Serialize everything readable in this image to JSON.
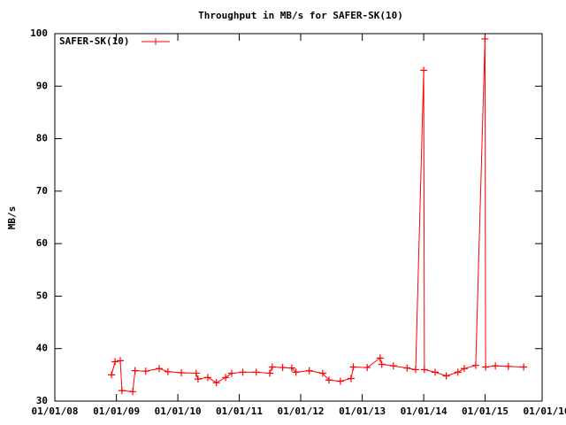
{
  "chart_data": {
    "type": "line",
    "title": "Throughput in MB/s for SAFER-SK(10)",
    "ylabel": "MB/s",
    "x": [
      "2008-12-03",
      "2008-12-24",
      "2009-01-24",
      "2009-02-03",
      "2009-04-08",
      "2009-04-22",
      "2009-06-24",
      "2009-09-12",
      "2009-11-03",
      "2010-01-22",
      "2010-04-20",
      "2010-05-01",
      "2010-06-28",
      "2010-08-18",
      "2010-10-12",
      "2010-11-17",
      "2011-01-22",
      "2011-04-12",
      "2011-07-01",
      "2011-07-16",
      "2011-09-16",
      "2011-11-09",
      "2011-12-04",
      "2012-02-21",
      "2012-05-11",
      "2012-06-17",
      "2012-08-24",
      "2012-10-26",
      "2012-11-09",
      "2013-01-30",
      "2013-04-17",
      "2013-04-27",
      "2013-07-05",
      "2013-09-24",
      "2013-11-14",
      "2014-01-01",
      "2014-01-05",
      "2014-03-10",
      "2014-05-15",
      "2014-07-23",
      "2014-08-30",
      "2014-11-06",
      "2014-12-31",
      "2015-01-04",
      "2015-03-03",
      "2015-05-19",
      "2015-08-18"
    ],
    "series": [
      {
        "name": "SAFER-SK(10)",
        "color": "#ff0000",
        "values": [
          35,
          37.5,
          37.7,
          32,
          31.8,
          35.8,
          35.7,
          36.2,
          35.6,
          35.4,
          35.3,
          34.2,
          34.5,
          33.5,
          34.5,
          35.3,
          35.5,
          35.5,
          35.3,
          36.5,
          36.4,
          36.3,
          35.5,
          35.8,
          35.3,
          34,
          33.8,
          34.3,
          36.5,
          36.4,
          38.2,
          37,
          36.7,
          36.3,
          36,
          93,
          36,
          35.5,
          34.8,
          35.5,
          36.2,
          36.8,
          99,
          36.5,
          36.7,
          36.6,
          36.5
        ]
      }
    ],
    "xlim": [
      "2008-01-01",
      "2016-01-01"
    ],
    "xticks": [
      {
        "value": "2008-01-01",
        "label": "01/01/08"
      },
      {
        "value": "2009-01-01",
        "label": "01/01/09"
      },
      {
        "value": "2010-01-01",
        "label": "01/01/10"
      },
      {
        "value": "2011-01-01",
        "label": "01/01/11"
      },
      {
        "value": "2012-01-01",
        "label": "01/01/12"
      },
      {
        "value": "2013-01-01",
        "label": "01/01/13"
      },
      {
        "value": "2014-01-01",
        "label": "01/01/14"
      },
      {
        "value": "2015-01-01",
        "label": "01/01/15"
      },
      {
        "value": "2016-01-01",
        "label": "01/01/16"
      }
    ],
    "ylim": [
      30,
      100
    ],
    "yticks": [
      30,
      40,
      50,
      60,
      70,
      80,
      90,
      100
    ],
    "grid": false,
    "legend": "top-left"
  }
}
